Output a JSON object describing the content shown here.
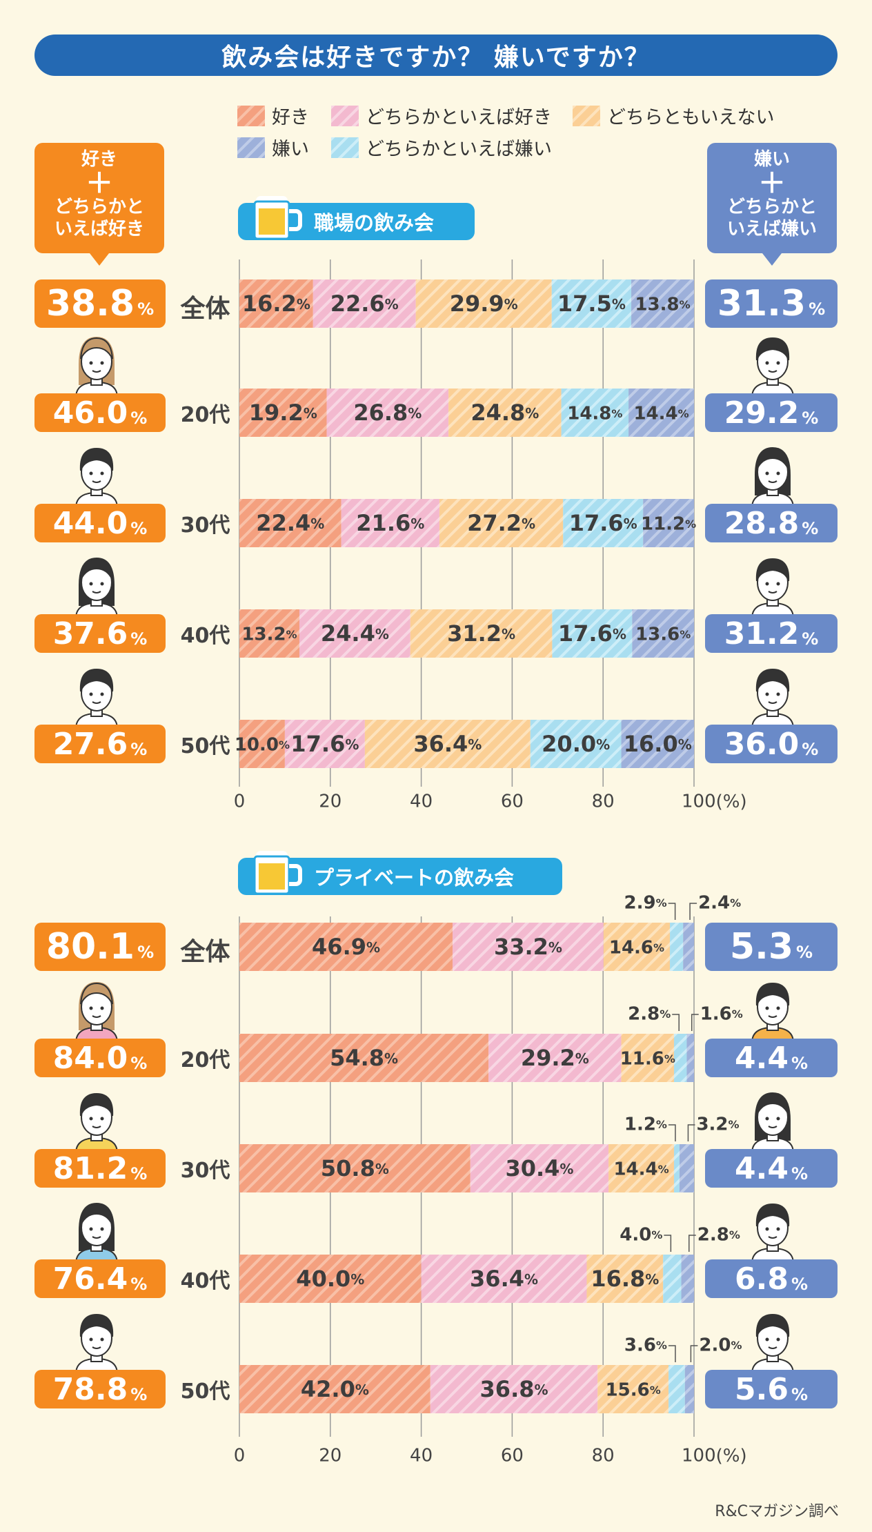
{
  "title": "飲み会は好きですか？ 嫌いですか？",
  "legend": [
    {
      "label": "好き",
      "color": "#f4a07f"
    },
    {
      "label": "どちらかといえば好き",
      "color": "#f3b9cf"
    },
    {
      "label": "どちらともいえない",
      "color": "#fbcf95"
    },
    {
      "label": "嫌い",
      "color": "#9db0da"
    },
    {
      "label": "どちらかといえば嫌い",
      "color": "#a9def0"
    }
  ],
  "callouts": {
    "left": {
      "line1": "好き",
      "plus": "＋",
      "line2": "どちらかと",
      "line3": "いえば好き"
    },
    "right": {
      "line1": "嫌い",
      "plus": "＋",
      "line2": "どちらかと",
      "line3": "いえば嫌い"
    }
  },
  "pct_unit": "%",
  "axis_unit": "(%)",
  "source_note": "R&Cマガジン調べ",
  "chart_data": [
    {
      "type": "bar",
      "stacked": true,
      "orientation": "horizontal",
      "title": "職場の飲み会",
      "categories": [
        "全体",
        "20代",
        "30代",
        "40代",
        "50代"
      ],
      "series": [
        {
          "name": "好き",
          "values": [
            16.2,
            19.2,
            22.4,
            13.2,
            10.0
          ]
        },
        {
          "name": "どちらかといえば好き",
          "values": [
            22.6,
            26.8,
            21.6,
            24.4,
            17.6
          ]
        },
        {
          "name": "どちらともいえない",
          "values": [
            29.9,
            24.8,
            27.2,
            31.2,
            36.4
          ]
        },
        {
          "name": "どちらかといえば嫌い",
          "values": [
            17.5,
            14.8,
            17.6,
            17.6,
            20.0
          ]
        },
        {
          "name": "嫌い",
          "values": [
            13.8,
            14.4,
            11.2,
            13.6,
            16.0
          ]
        }
      ],
      "like_total": [
        "38.8",
        "46.0",
        "44.0",
        "37.6",
        "27.6"
      ],
      "dislike_total": [
        "31.3",
        "29.2",
        "28.8",
        "31.2",
        "36.0"
      ],
      "xlim": [
        0,
        100
      ],
      "xticks": [
        0,
        20,
        40,
        60,
        80,
        100
      ]
    },
    {
      "type": "bar",
      "stacked": true,
      "orientation": "horizontal",
      "title": "プライベートの飲み会",
      "categories": [
        "全体",
        "20代",
        "30代",
        "40代",
        "50代"
      ],
      "series": [
        {
          "name": "好き",
          "values": [
            46.9,
            54.8,
            50.8,
            40.0,
            42.0
          ]
        },
        {
          "name": "どちらかといえば好き",
          "values": [
            33.2,
            29.2,
            30.4,
            36.4,
            36.8
          ]
        },
        {
          "name": "どちらともいえない",
          "values": [
            14.6,
            11.6,
            14.4,
            16.8,
            15.6
          ]
        },
        {
          "name": "どちらかといえば嫌い",
          "values": [
            2.9,
            2.8,
            1.2,
            4.0,
            3.6
          ]
        },
        {
          "name": "嫌い",
          "values": [
            2.4,
            1.6,
            3.2,
            2.8,
            2.0
          ]
        }
      ],
      "like_total": [
        "80.1",
        "84.0",
        "81.2",
        "76.4",
        "78.8"
      ],
      "dislike_total": [
        "5.3",
        "4.4",
        "4.4",
        "6.8",
        "5.6"
      ],
      "xlim": [
        0,
        100
      ],
      "xticks": [
        0,
        20,
        40,
        60,
        80,
        100
      ]
    }
  ]
}
